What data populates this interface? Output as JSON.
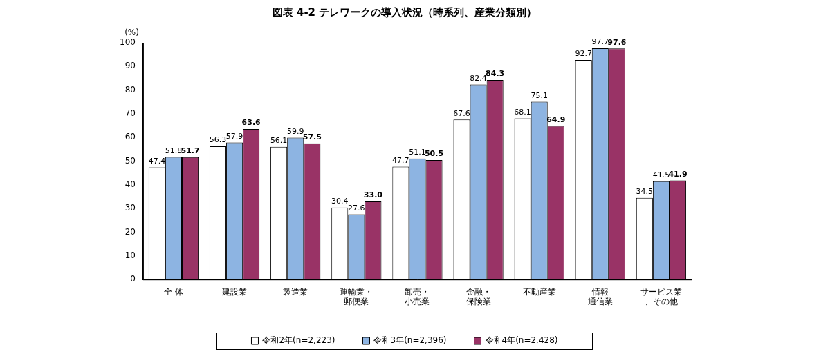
{
  "chart_data": {
    "type": "bar",
    "title": "図表 4-2 テレワークの導入状況（時系列、産業分類別）",
    "y_label": "(%)",
    "categories": [
      "全 体",
      "建設業",
      "製造業",
      "運輸業・\n郵便業",
      "卸売・\n小売業",
      "金融・\n保険業",
      "不動産業",
      "情報\n通信業",
      "サービス業\n、その他"
    ],
    "series": [
      {
        "name": "令和2年(n=2,223)",
        "color": "#ffffff",
        "values": [
          47.4,
          56.3,
          56.1,
          30.4,
          47.7,
          67.6,
          68.1,
          92.7,
          34.5
        ],
        "value_labels": [
          "47.4",
          "56.3",
          "56.1",
          "30.4",
          "47.7",
          "67.6",
          "68.1",
          "92.7",
          "34.5"
        ]
      },
      {
        "name": "令和3年(n=2,396)",
        "color": "#8db4e2",
        "values": [
          51.8,
          57.9,
          59.9,
          27.6,
          51.1,
          82.4,
          75.1,
          97.7,
          41.5
        ],
        "value_labels": [
          "51.8",
          "57.9",
          "59.9",
          "27.6",
          "51.1",
          "82.4",
          "75.1",
          "97.7",
          "41.5"
        ]
      },
      {
        "name": "令和4年(n=2,428)",
        "color": "#993366",
        "values": [
          51.7,
          63.6,
          57.5,
          33.0,
          50.5,
          84.3,
          64.9,
          97.6,
          41.9
        ],
        "value_labels": [
          "51.7",
          "63.6",
          "57.5",
          "33.0",
          "50.5",
          "84.3",
          "64.9",
          "97.6",
          "41.9"
        ]
      }
    ],
    "ylim": [
      0,
      100
    ],
    "yticks": [
      0,
      10,
      20,
      30,
      40,
      50,
      60,
      70,
      80,
      90,
      100
    ],
    "grid": false,
    "legend": "bottom",
    "data_labels": true
  }
}
